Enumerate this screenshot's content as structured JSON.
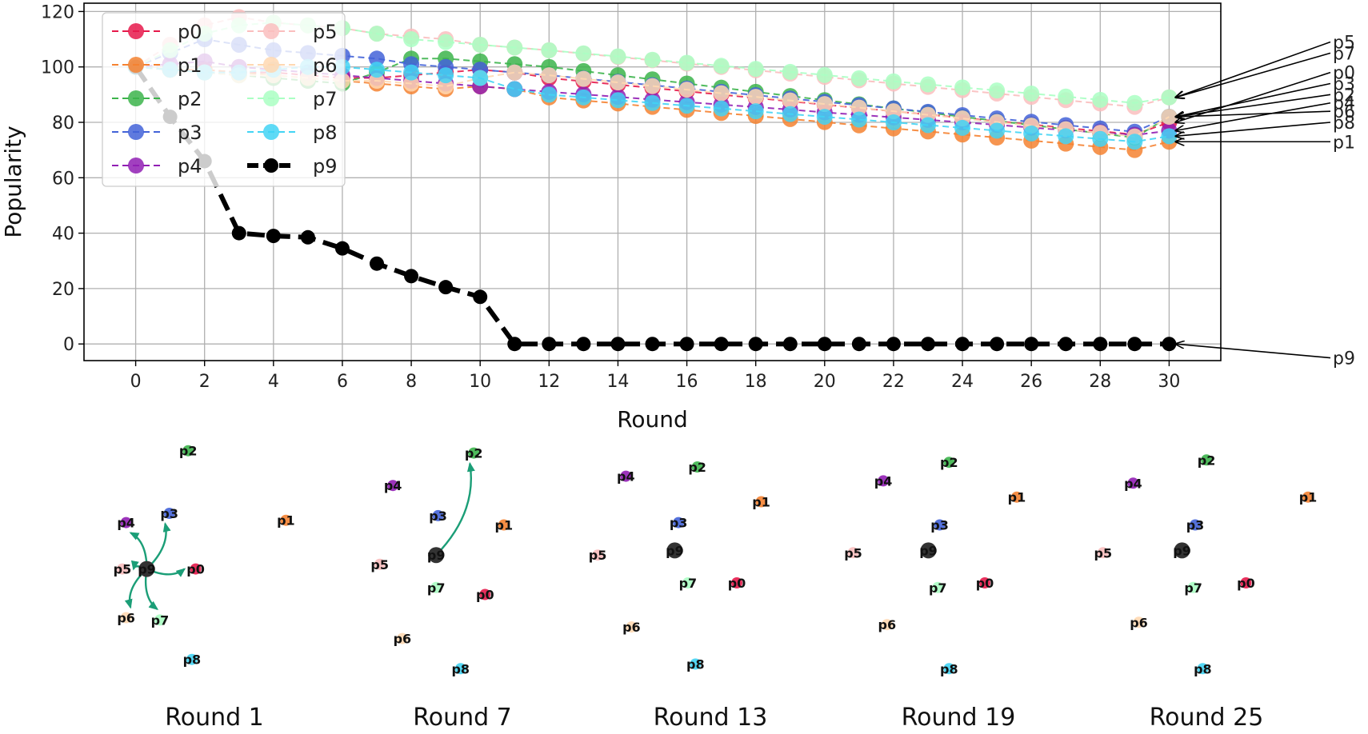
{
  "chart_data": [
    {
      "type": "line",
      "title": "",
      "xlabel": "Round",
      "ylabel": "Popularity",
      "xlim": [
        -1.5,
        31.5
      ],
      "ylim": [
        -6,
        123
      ],
      "xticks": [
        0,
        2,
        4,
        6,
        8,
        10,
        12,
        14,
        16,
        18,
        20,
        22,
        24,
        26,
        28,
        30
      ],
      "yticks": [
        0,
        20,
        40,
        60,
        80,
        100,
        120
      ],
      "grid": true,
      "legend": {
        "placement": "top-left",
        "columns": 2
      },
      "x": [
        0,
        1,
        2,
        3,
        4,
        5,
        6,
        7,
        8,
        9,
        10,
        11,
        12,
        13,
        14,
        15,
        16,
        17,
        18,
        19,
        20,
        21,
        22,
        23,
        24,
        25,
        26,
        27,
        28,
        29,
        30
      ],
      "series": [
        {
          "name": "p0",
          "color": "#e6194b",
          "values": [
            100,
            99,
            99,
            98,
            98,
            97,
            96,
            96,
            97,
            98,
            99,
            98,
            96,
            94.8,
            93.6,
            92.4,
            91.2,
            90,
            88.8,
            87.6,
            86.4,
            85.2,
            84,
            82.8,
            81.6,
            80.4,
            79.2,
            78,
            76.8,
            75.6,
            80
          ]
        },
        {
          "name": "p1",
          "color": "#f58231",
          "values": [
            100,
            99,
            99,
            98,
            97,
            96,
            95,
            94,
            93,
            92,
            93,
            92,
            89,
            87.9,
            86.8,
            85.6,
            84.5,
            83.4,
            82.3,
            81.2,
            80.1,
            78.9,
            77.8,
            76.7,
            75.6,
            74.5,
            73.4,
            72.3,
            71.1,
            70,
            73
          ]
        },
        {
          "name": "p2",
          "color": "#3cb44b",
          "values": [
            100,
            99,
            98,
            97,
            96,
            95,
            94,
            98,
            103,
            103,
            102,
            101,
            100,
            98.5,
            97,
            95.5,
            94,
            92.5,
            91,
            89.5,
            88,
            86.5,
            85,
            83.5,
            82,
            80.5,
            79,
            77.5,
            76,
            74.5,
            82
          ]
        },
        {
          "name": "p3",
          "color": "#4363d8",
          "values": [
            100,
            105,
            110,
            108,
            106,
            105,
            104,
            103,
            101,
            100,
            99,
            98,
            97,
            95.8,
            94.6,
            93.4,
            92.2,
            91,
            89.8,
            88.6,
            87.4,
            86.2,
            85,
            83.8,
            82.6,
            81.4,
            80.2,
            79,
            77.8,
            76.6,
            82
          ]
        },
        {
          "name": "p4",
          "color": "#911eb4",
          "values": [
            100,
            101,
            102,
            100,
            99,
            98,
            97,
            96,
            95,
            94,
            93,
            92,
            91,
            90.1,
            89.2,
            88.2,
            87.3,
            86.4,
            85.5,
            84.6,
            83.6,
            82.7,
            81.8,
            80.9,
            80,
            79.1,
            78.1,
            77.2,
            76.3,
            75.4,
            77
          ]
        },
        {
          "name": "p5",
          "color": "#fabebe",
          "values": [
            100,
            108,
            115,
            118,
            116,
            115,
            114,
            112,
            111,
            110,
            108,
            107,
            106,
            104.8,
            103.6,
            102.4,
            101.2,
            100,
            98.8,
            97.6,
            96.4,
            95.2,
            94,
            92.8,
            91.6,
            90.4,
            89.2,
            88,
            86.8,
            85.6,
            89
          ]
        },
        {
          "name": "p6",
          "color": "#ffd8b1",
          "values": [
            100,
            99,
            98,
            97,
            97,
            96,
            95,
            95,
            94,
            93,
            96,
            98,
            97,
            95.7,
            94.4,
            93.1,
            91.8,
            90.5,
            89.2,
            87.9,
            86.6,
            85.3,
            84,
            82.7,
            81.4,
            80.1,
            78.8,
            77.5,
            76.2,
            74.9,
            82
          ]
        },
        {
          "name": "p7",
          "color": "#aaffc3",
          "values": [
            100,
            106,
            112,
            115,
            116,
            115,
            114,
            112,
            110,
            109,
            108,
            107,
            106,
            104.9,
            103.8,
            102.6,
            101.5,
            100.4,
            99.3,
            98.2,
            97.1,
            95.9,
            94.8,
            93.7,
            92.6,
            91.5,
            90.4,
            89.3,
            88.1,
            87,
            89
          ]
        },
        {
          "name": "p8",
          "color": "#42d4f4",
          "values": [
            100,
            99,
            98,
            98,
            99,
            100,
            100,
            99,
            98,
            97,
            96,
            92,
            90,
            89,
            88,
            87,
            86,
            85,
            84,
            83,
            82,
            81,
            80,
            79,
            78,
            77,
            76,
            75,
            74,
            73,
            75
          ]
        },
        {
          "name": "p9",
          "color": "#000000",
          "values": [
            100,
            82,
            66,
            40,
            39,
            38.5,
            34.5,
            29,
            24.5,
            20.5,
            17,
            0,
            0,
            0,
            0,
            0,
            0,
            0,
            0,
            0,
            0,
            0,
            0,
            0,
            0,
            0,
            0,
            0,
            0,
            0,
            0
          ]
        }
      ],
      "end_labels": [
        {
          "text": "p5",
          "y": 109
        },
        {
          "text": "p7",
          "y": 105
        },
        {
          "text": "p0",
          "y": 98
        },
        {
          "text": "p3",
          "y": 94
        },
        {
          "text": "p2",
          "y": 90
        },
        {
          "text": "p4",
          "y": 87
        },
        {
          "text": "p6",
          "y": 84
        },
        {
          "text": "p8",
          "y": 80
        },
        {
          "text": "p1",
          "y": 73
        },
        {
          "text": "p9",
          "y": -5
        }
      ]
    },
    {
      "type": "network",
      "panels": [
        {
          "title": "Round 1",
          "nodes": [
            {
              "id": "p2",
              "x": 0.52,
              "y": 0.03
            },
            {
              "id": "p1",
              "x": 1.04,
              "y": 0.33
            },
            {
              "id": "p4",
              "x": 0.19,
              "y": 0.34
            },
            {
              "id": "p3",
              "x": 0.42,
              "y": 0.3
            },
            {
              "id": "p5",
              "x": 0.17,
              "y": 0.54
            },
            {
              "id": "p9",
              "x": 0.3,
              "y": 0.54
            },
            {
              "id": "p0",
              "x": 0.56,
              "y": 0.54
            },
            {
              "id": "p6",
              "x": 0.19,
              "y": 0.75
            },
            {
              "id": "p7",
              "x": 0.37,
              "y": 0.76
            },
            {
              "id": "p8",
              "x": 0.54,
              "y": 0.93
            }
          ],
          "edges": [
            [
              "p9",
              "p4"
            ],
            [
              "p9",
              "p3"
            ],
            [
              "p9",
              "p5"
            ],
            [
              "p9",
              "p0"
            ],
            [
              "p9",
              "p6"
            ],
            [
              "p9",
              "p7"
            ]
          ]
        },
        {
          "title": "Round 7",
          "nodes": [
            {
              "id": "p2",
              "x": 0.72,
              "y": 0.04
            },
            {
              "id": "p4",
              "x": 0.29,
              "y": 0.18
            },
            {
              "id": "p3",
              "x": 0.53,
              "y": 0.31
            },
            {
              "id": "p1",
              "x": 0.88,
              "y": 0.35
            },
            {
              "id": "p9",
              "x": 0.52,
              "y": 0.48
            },
            {
              "id": "p5",
              "x": 0.22,
              "y": 0.52
            },
            {
              "id": "p7",
              "x": 0.52,
              "y": 0.62
            },
            {
              "id": "p0",
              "x": 0.78,
              "y": 0.65
            },
            {
              "id": "p6",
              "x": 0.34,
              "y": 0.84
            },
            {
              "id": "p8",
              "x": 0.65,
              "y": 0.97
            }
          ],
          "edges": [
            [
              "p9",
              "p2"
            ]
          ]
        },
        {
          "title": "Round 13",
          "nodes": [
            {
              "id": "p4",
              "x": 0.21,
              "y": 0.14
            },
            {
              "id": "p2",
              "x": 0.59,
              "y": 0.1
            },
            {
              "id": "p1",
              "x": 0.93,
              "y": 0.25
            },
            {
              "id": "p3",
              "x": 0.49,
              "y": 0.34
            },
            {
              "id": "p9",
              "x": 0.47,
              "y": 0.46
            },
            {
              "id": "p5",
              "x": 0.06,
              "y": 0.48
            },
            {
              "id": "p7",
              "x": 0.54,
              "y": 0.6
            },
            {
              "id": "p0",
              "x": 0.8,
              "y": 0.6
            },
            {
              "id": "p6",
              "x": 0.24,
              "y": 0.79
            },
            {
              "id": "p8",
              "x": 0.58,
              "y": 0.95
            }
          ],
          "edges": []
        },
        {
          "title": "Round 19",
          "nodes": [
            {
              "id": "p2",
              "x": 0.61,
              "y": 0.08
            },
            {
              "id": "p4",
              "x": 0.26,
              "y": 0.16
            },
            {
              "id": "p1",
              "x": 0.97,
              "y": 0.23
            },
            {
              "id": "p3",
              "x": 0.56,
              "y": 0.35
            },
            {
              "id": "p5",
              "x": 0.1,
              "y": 0.47
            },
            {
              "id": "p9",
              "x": 0.5,
              "y": 0.46
            },
            {
              "id": "p0",
              "x": 0.8,
              "y": 0.6
            },
            {
              "id": "p7",
              "x": 0.55,
              "y": 0.62
            },
            {
              "id": "p6",
              "x": 0.28,
              "y": 0.78
            },
            {
              "id": "p8",
              "x": 0.61,
              "y": 0.97
            }
          ],
          "edges": []
        },
        {
          "title": "Round 25",
          "nodes": [
            {
              "id": "p2",
              "x": 0.66,
              "y": 0.07
            },
            {
              "id": "p4",
              "x": 0.27,
              "y": 0.17
            },
            {
              "id": "p1",
              "x": 1.2,
              "y": 0.23
            },
            {
              "id": "p3",
              "x": 0.6,
              "y": 0.35
            },
            {
              "id": "p5",
              "x": 0.11,
              "y": 0.47
            },
            {
              "id": "p9",
              "x": 0.53,
              "y": 0.46
            },
            {
              "id": "p0",
              "x": 0.87,
              "y": 0.6
            },
            {
              "id": "p7",
              "x": 0.59,
              "y": 0.62
            },
            {
              "id": "p6",
              "x": 0.3,
              "y": 0.77
            },
            {
              "id": "p8",
              "x": 0.64,
              "y": 0.97
            }
          ],
          "edges": []
        }
      ]
    }
  ]
}
